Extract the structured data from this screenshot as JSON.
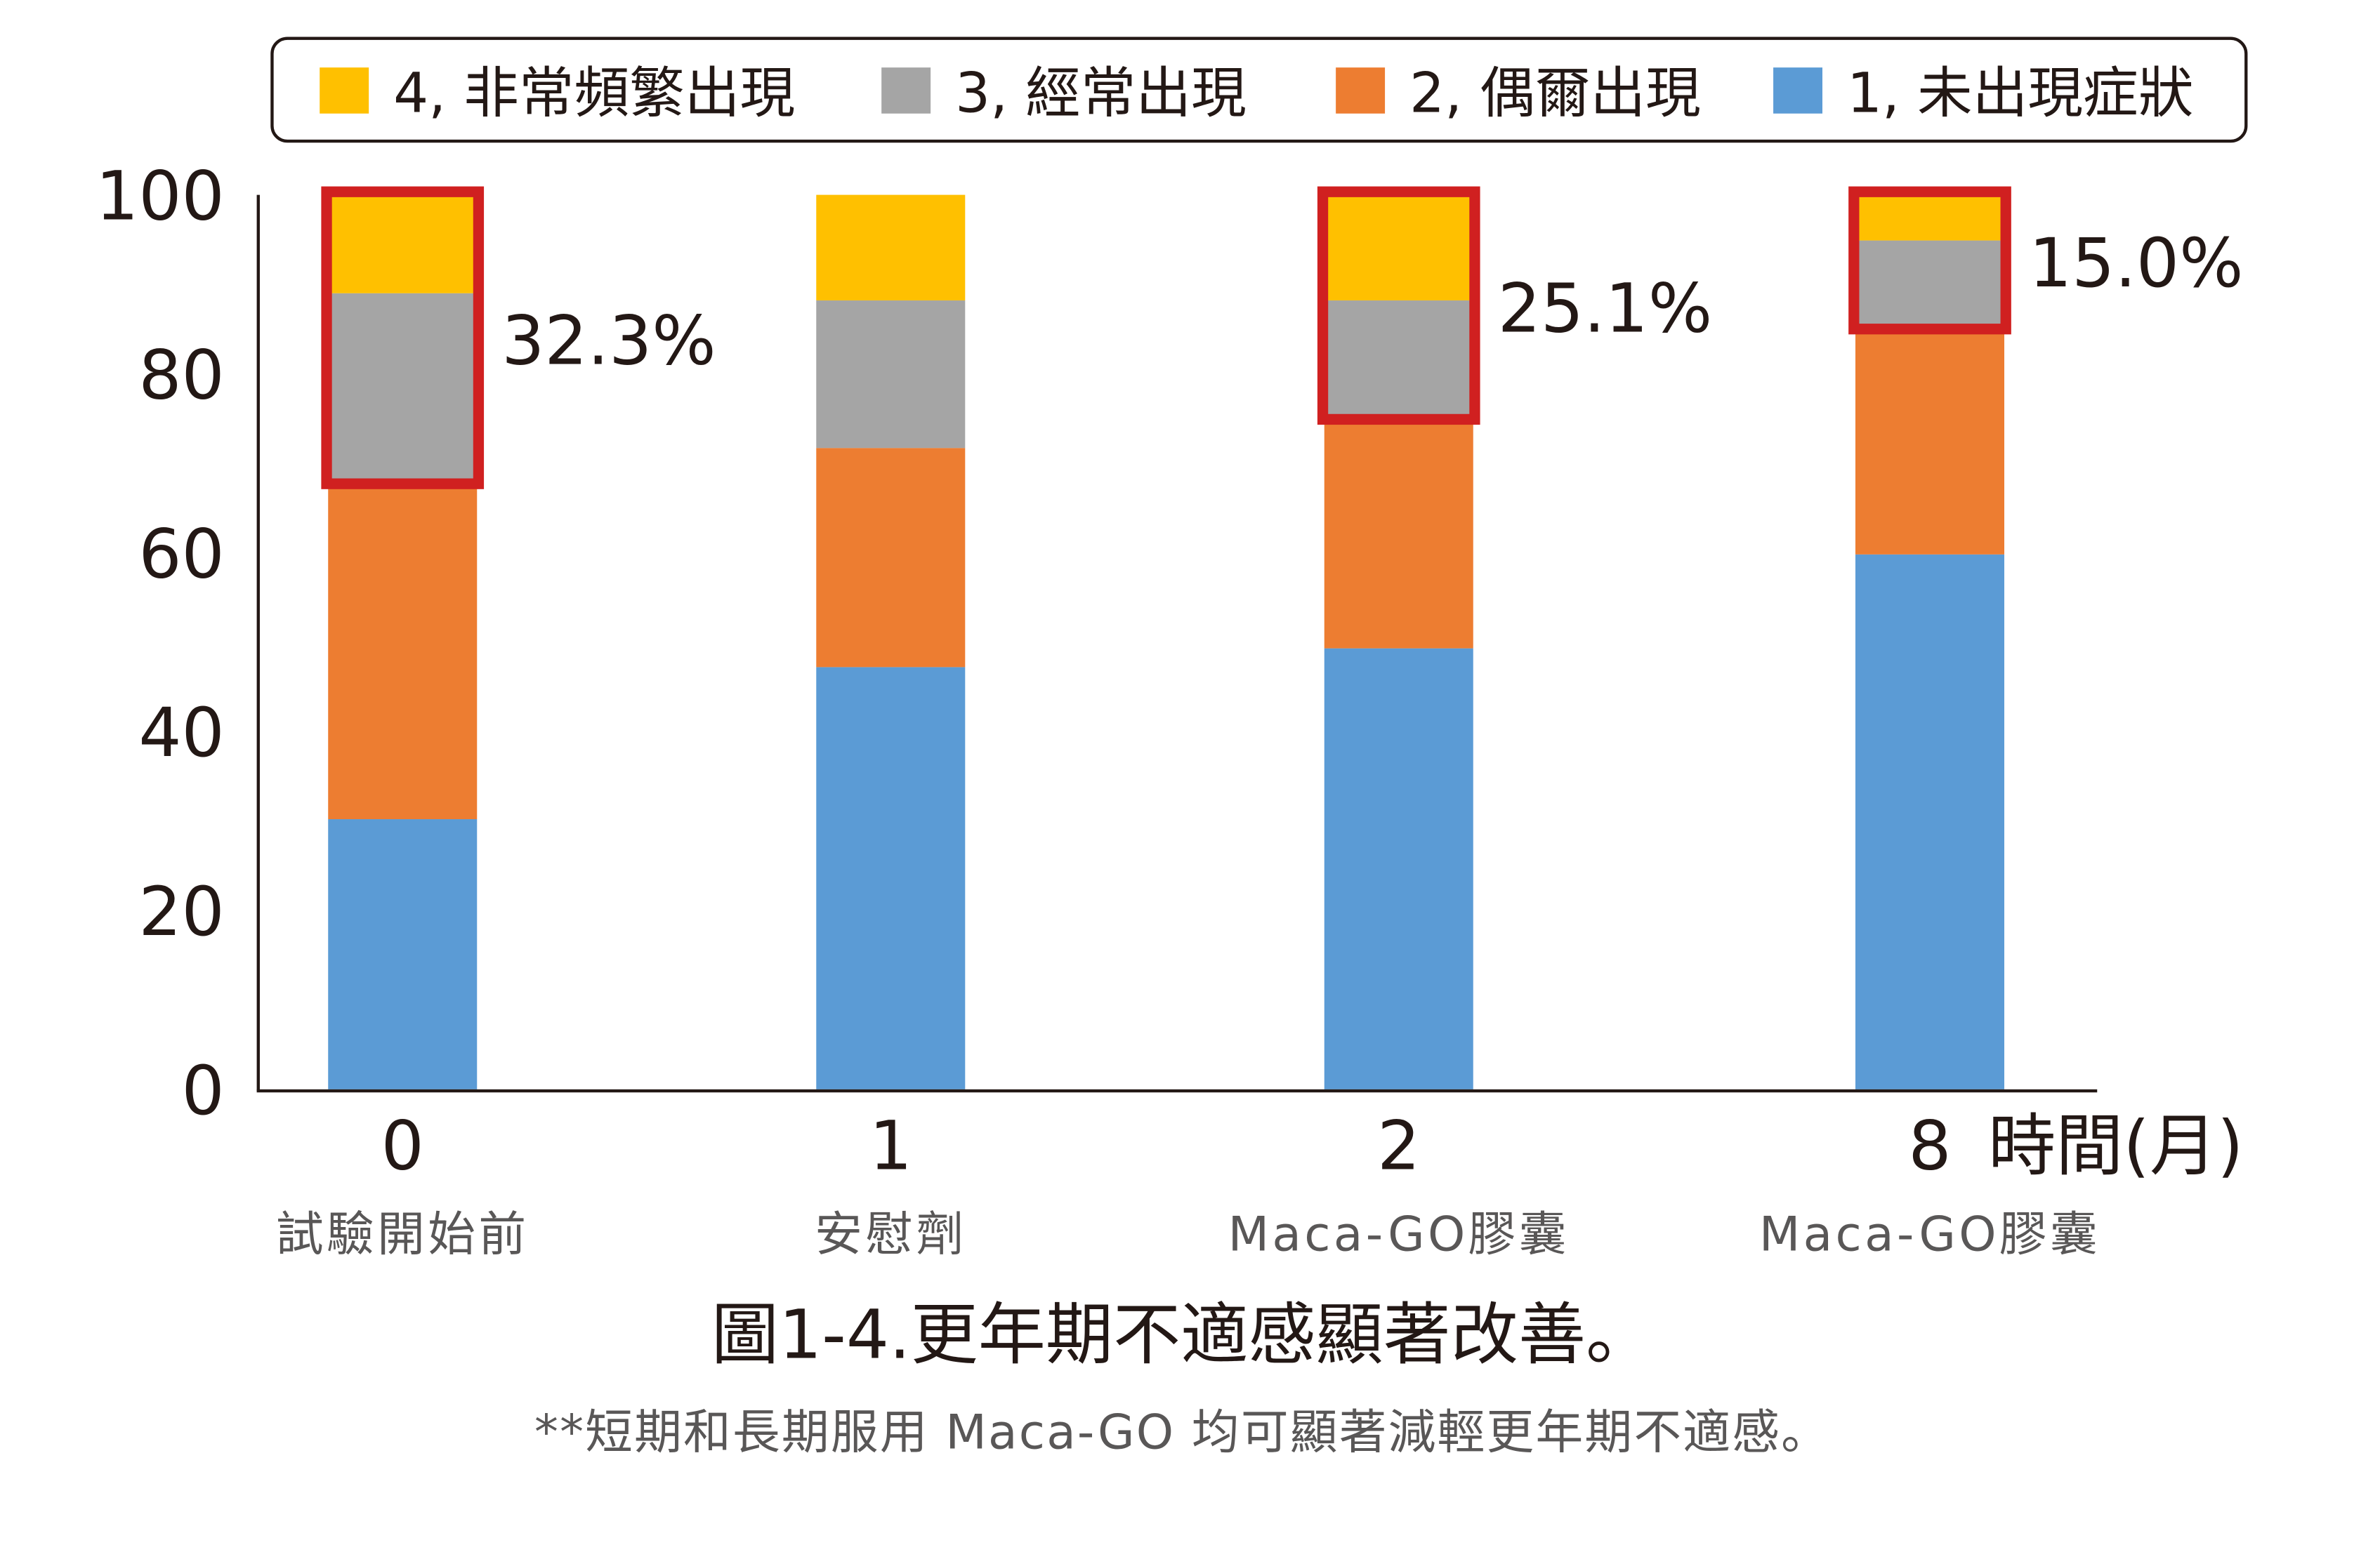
{
  "chart_data": {
    "type": "bar",
    "stacked": true,
    "categories": [
      "0",
      "1",
      "2",
      "8"
    ],
    "category_sublabels": [
      "試驗開始前",
      "安慰劑",
      "Maca-GO膠囊",
      "Maca-GO膠囊"
    ],
    "xlabel": "時間(月)",
    "ylabel": "",
    "ylim": [
      0,
      100
    ],
    "yticks": [
      "0",
      "20",
      "40",
      "60",
      "80",
      "100"
    ],
    "series": [
      {
        "name": "1, 未出現症狀",
        "color": "#5B9BD5",
        "values": [
          30.2,
          47.2,
          49.3,
          59.8
        ]
      },
      {
        "name": "2, 偶爾出現",
        "color": "#ED7D31",
        "values": [
          37.5,
          24.5,
          25.6,
          25.2
        ]
      },
      {
        "name": "3, 經常出現",
        "color": "#A5A5A5",
        "values": [
          21.3,
          16.5,
          13.3,
          9.9
        ]
      },
      {
        "name": "4, 非常頻繁出現",
        "color": "#FFC000",
        "values": [
          11.0,
          11.8,
          11.8,
          5.1
        ]
      }
    ],
    "legend_order": [
      3,
      2,
      1,
      0
    ],
    "legend_position": "top",
    "annotations": [
      {
        "category": "0",
        "text": "32.3%"
      },
      {
        "category": "2",
        "text": "25.1%"
      },
      {
        "category": "8",
        "text": "15.0%"
      }
    ],
    "highlight_color": "#D02020",
    "title": "圖1-4.更年期不適感顯著改善。",
    "footnote": "**短期和長期服用 Maca-GO 均可顯著減輕更年期不適感。"
  }
}
